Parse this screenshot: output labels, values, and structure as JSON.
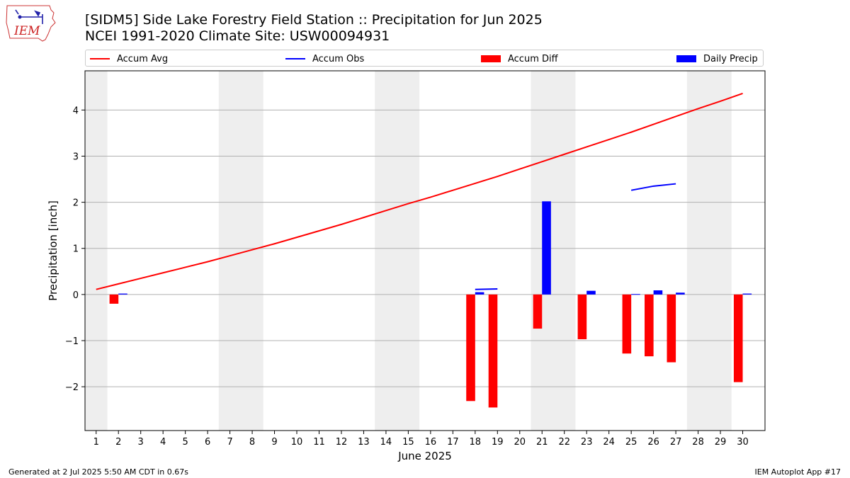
{
  "header": {
    "title": "[SIDM5] Side Lake Forestry Field Station :: Precipitation for Jun 2025",
    "subtitle": "NCEI 1991-2020 Climate Site: USW00094931",
    "logo_text": "IEM"
  },
  "legend": {
    "placement": "top",
    "items": [
      {
        "label": "Accum Avg",
        "kind": "line",
        "color": "#ff0000"
      },
      {
        "label": "Accum Obs",
        "kind": "line",
        "color": "#0000ff"
      },
      {
        "label": "Accum Diff",
        "kind": "bar",
        "color": "#ff0000"
      },
      {
        "label": "Daily Precip",
        "kind": "bar",
        "color": "#0000ff"
      }
    ]
  },
  "footer": {
    "left": "Generated at 2 Jul 2025 5:50 AM CDT in 0.67s",
    "right": "IEM Autoplot App #17"
  },
  "chart_data": {
    "type": "bar",
    "xlabel": "June 2025",
    "ylabel": "Precipitation [inch]",
    "xlim": [
      0.5,
      31
    ],
    "ylim": [
      -2.95,
      4.85
    ],
    "x_ticks": [
      1,
      2,
      3,
      4,
      5,
      6,
      7,
      8,
      9,
      10,
      11,
      12,
      13,
      14,
      15,
      16,
      17,
      18,
      19,
      20,
      21,
      22,
      23,
      24,
      25,
      26,
      27,
      28,
      29,
      30
    ],
    "y_ticks": [
      -2,
      -1,
      0,
      1,
      2,
      3,
      4
    ],
    "y_grid": true,
    "weekend_shading": [
      [
        0.5,
        1.5
      ],
      [
        6.5,
        8.5
      ],
      [
        13.5,
        15.5
      ],
      [
        20.5,
        22.5
      ],
      [
        27.5,
        29.5
      ]
    ],
    "shading_color": "#eeeeee",
    "series": [
      {
        "name": "Accum Avg",
        "kind": "line",
        "color": "#ff0000",
        "x": [
          1,
          2,
          3,
          4,
          5,
          6,
          7,
          8,
          9,
          10,
          11,
          12,
          13,
          14,
          15,
          16,
          17,
          18,
          19,
          20,
          21,
          22,
          23,
          24,
          25,
          26,
          27,
          28,
          29,
          30
        ],
        "values": [
          0.11,
          0.23,
          0.35,
          0.47,
          0.59,
          0.71,
          0.84,
          0.97,
          1.1,
          1.24,
          1.38,
          1.52,
          1.67,
          1.82,
          1.97,
          2.11,
          2.26,
          2.41,
          2.56,
          2.72,
          2.88,
          3.04,
          3.2,
          3.36,
          3.52,
          3.69,
          3.86,
          4.03,
          4.19,
          4.36
        ]
      },
      {
        "name": "Accum Obs",
        "kind": "line",
        "color": "#0000ff",
        "segments": [
          {
            "x": [
              18,
              19
            ],
            "values": [
              0.11,
              0.12
            ]
          },
          {
            "x": [
              25,
              26,
              27
            ],
            "values": [
              2.26,
              2.35,
              2.4
            ]
          }
        ]
      },
      {
        "name": "Accum Diff",
        "kind": "bar",
        "color": "#ff0000",
        "x": [
          2,
          18,
          19,
          21,
          23,
          25,
          26,
          27,
          30
        ],
        "values": [
          -0.2,
          -2.31,
          -2.45,
          -0.74,
          -0.97,
          -1.28,
          -1.34,
          -1.47,
          -1.9
        ]
      },
      {
        "name": "Daily Precip",
        "kind": "bar",
        "color": "#0000ff",
        "x": [
          2,
          18,
          21,
          23,
          25,
          26,
          27,
          30
        ],
        "values": [
          0.02,
          0.05,
          2.02,
          0.08,
          0.01,
          0.09,
          0.04,
          0.02
        ]
      }
    ]
  }
}
